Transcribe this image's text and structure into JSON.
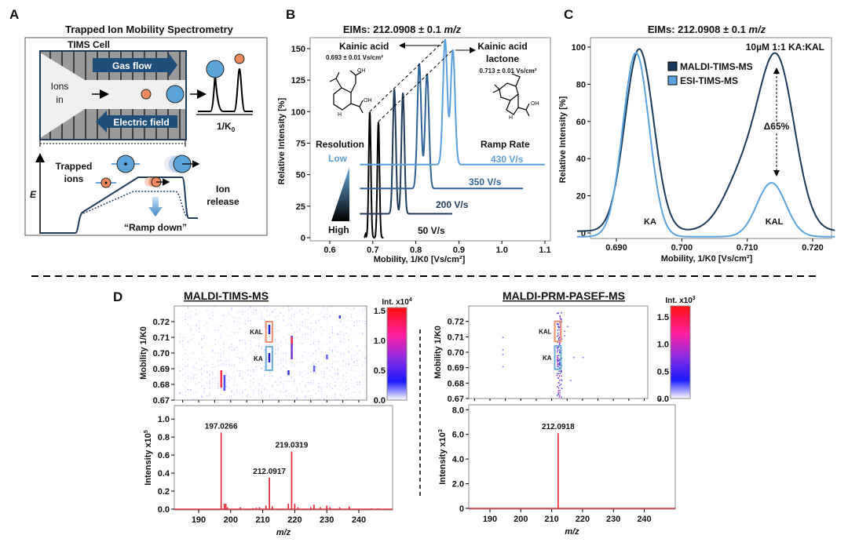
{
  "panel_labels": [
    "A",
    "B",
    "C",
    "D"
  ],
  "panel_a": {
    "title": "Trapped Ion Mobility Spectrometry",
    "cell_label": "TIMS Cell",
    "gas_flow": "Gas flow",
    "electric_field": "Electric field",
    "ions_in_1": "Ions",
    "ions_in_2": "in",
    "axis_k0": "1/K",
    "axis_k0_sub": "0",
    "trapped_1": "Trapped",
    "trapped_2": "ions",
    "energy": "E",
    "release_1": "Ion",
    "release_2": "release",
    "ramp_down": "“Ramp down”",
    "colors": {
      "blue_ion": "#5ba3d9",
      "orange_ion": "#f08a5d",
      "arrow": "#1f4e79",
      "electrode": "#9a9a9a"
    }
  },
  "chart_data": [
    {
      "id": "B",
      "type": "line",
      "title": "EIMs: 212.0908 ± 0.1 m/z",
      "title_main": "EIMs: 212.0908 ± 0.1 ",
      "title_unit": "m/z",
      "xlabel": "Mobility, 1/K0 [Vs/cm²]",
      "ylabel": "Relative Intensity [%]",
      "xlim": [
        0.55,
        1.1
      ],
      "ylim": [
        0,
        160
      ],
      "xticks": [
        "0.6",
        "0.7",
        "0.8",
        "0.9",
        "1.0",
        "1.1"
      ],
      "yticks": [
        "0",
        "25",
        "50",
        "75",
        "100",
        "125",
        "150"
      ],
      "series": [
        {
          "name": "50 V/s",
          "color": "#000000",
          "baseline": 0,
          "range": [
            0.68,
            0.725
          ],
          "peaks": [
            [
              0.693,
              100
            ],
            [
              0.713,
              92
            ]
          ],
          "width": 0.0025
        },
        {
          "name": "200 V/s",
          "color": "#1f3b5c",
          "baseline": 19,
          "range": [
            0.67,
            0.885
          ],
          "peaks": [
            [
              0.75,
              118
            ],
            [
              0.77,
              115
            ]
          ],
          "width": 0.0035
        },
        {
          "name": "350 V/s",
          "color": "#2e6396",
          "baseline": 39,
          "range": [
            0.67,
            1.05
          ],
          "peaks": [
            [
              0.808,
              138
            ],
            [
              0.826,
              130
            ]
          ],
          "width": 0.0045
        },
        {
          "name": "430 V/s",
          "color": "#5b9fdc",
          "baseline": 58,
          "range": [
            0.67,
            1.1
          ],
          "peaks": [
            [
              0.868,
              157
            ],
            [
              0.886,
              149
            ]
          ],
          "width": 0.005
        }
      ],
      "annotations": {
        "ka_name": "Kainic acid",
        "ka_value": "0.693 ± 0.01 Vs/cm²",
        "kal_name_1": "Kainic acid",
        "kal_name_2": "lactone",
        "kal_value": "0.713 ± 0.01 Vs/cm²",
        "resolution": "Resolution",
        "low": "Low",
        "high": "High",
        "ramp_rate": "Ramp Rate"
      }
    },
    {
      "id": "C",
      "type": "line",
      "title_main": "EIMs: 212.0908 ± 0.1 ",
      "title_unit": "m/z",
      "subtitle": "10µM 1:1 KA:KAL",
      "xlabel": "Mobility, 1/K0 [Vs/cm²]",
      "ylabel": "Relative Intensity [%]",
      "xlim": [
        0.684,
        0.7235
      ],
      "ylim": [
        -3,
        104
      ],
      "xticks": [
        "0.690",
        "0.700",
        "0.710",
        "0.720"
      ],
      "yticks": [
        "0",
        "20",
        "40",
        "60",
        "80",
        "100"
      ],
      "legend_position": "top-center",
      "series": [
        {
          "name": "MALDI-TIMS-MS",
          "color": "#1b3a5a",
          "peaks": [
            [
              0.6935,
              98,
              0.0022
            ],
            [
              0.7146,
              88,
              0.0027
            ],
            [
              0.7095,
              30,
              0.003
            ]
          ],
          "offset": 1
        },
        {
          "name": "ESI-TIMS-MS",
          "color": "#5ba3e0",
          "peaks": [
            [
              0.693,
              99,
              0.002
            ],
            [
              0.7137,
              29,
              0.0022
            ]
          ],
          "offset": -2
        }
      ],
      "annotations": {
        "ka": "KA",
        "kal": "KAL",
        "delta": "Δ65%"
      }
    },
    {
      "id": "D-left-heatmap",
      "type": "heatmap",
      "title": "MALDI-TIMS-MS",
      "ylabel": "Mobility 1/K0",
      "xlim": [
        183,
        248
      ],
      "ylim": [
        0.67,
        0.73
      ],
      "yticks": [
        "0.67",
        "0.68",
        "0.69",
        "0.70",
        "0.71",
        "0.72"
      ],
      "colorbar": {
        "label": "Int. x10",
        "label_exp": "4",
        "ticks": [
          "0.0",
          "0.5",
          "1.0",
          "1.5"
        ],
        "max": 1.55
      },
      "boxes": [
        {
          "name": "KAL",
          "color": "#f0906a",
          "mz": [
            211,
            213
          ],
          "k0": [
            0.707,
            0.72
          ]
        },
        {
          "name": "KA",
          "color": "#6aaed6",
          "mz": [
            211,
            213
          ],
          "k0": [
            0.689,
            0.704
          ]
        }
      ]
    },
    {
      "id": "D-left-spectrum",
      "type": "bar",
      "xlabel": "m/z",
      "ylabel": "Intensity x10",
      "ylabel_exp": "5",
      "xlim": [
        183,
        248
      ],
      "ylim": [
        0,
        1.15
      ],
      "xticks": [
        "190",
        "200",
        "210",
        "220",
        "230",
        "240"
      ],
      "yticks": [
        "0.0",
        "0.2",
        "0.4",
        "0.6",
        "0.8",
        "1.0"
      ],
      "color": "#e0202a",
      "peaks": [
        [
          197.0266,
          0.85
        ],
        [
          198,
          0.06
        ],
        [
          198.5,
          0.06
        ],
        [
          199,
          0.02
        ],
        [
          203,
          0.02
        ],
        [
          207,
          0.01
        ],
        [
          208,
          0.015
        ],
        [
          209,
          0.02
        ],
        [
          211,
          0.04
        ],
        [
          212.0917,
          0.35
        ],
        [
          213,
          0.03
        ],
        [
          218,
          0.06
        ],
        [
          219.0319,
          0.64
        ],
        [
          220,
          0.06
        ],
        [
          221,
          0.02
        ],
        [
          225,
          0.02
        ],
        [
          226,
          0.05
        ],
        [
          228,
          0.02
        ],
        [
          230,
          0.04
        ],
        [
          231,
          0.02
        ],
        [
          234,
          0.02
        ],
        [
          237,
          0.03
        ],
        [
          244,
          0.01
        ],
        [
          246,
          0.01
        ]
      ],
      "labels": [
        "197.0266",
        "212.0917",
        "219.0319"
      ]
    },
    {
      "id": "D-right-heatmap",
      "type": "heatmap",
      "title": "MALDI-PRM-PASEF-MS",
      "ylabel": "Mobility 1/K0",
      "xlim": [
        183,
        241
      ],
      "ylim": [
        0.67,
        0.73
      ],
      "yticks": [
        "0.67",
        "0.68",
        "0.69",
        "0.70",
        "0.71",
        "0.72"
      ],
      "colorbar": {
        "label": "Int. x10",
        "label_exp": "3",
        "ticks": [
          "0.0",
          "0.5",
          "1.0",
          "1.5"
        ],
        "max": 1.7
      },
      "boxes": [
        {
          "name": "KAL",
          "color": "#f0906a",
          "mz": [
            211,
            213
          ],
          "k0": [
            0.707,
            0.72
          ]
        },
        {
          "name": "KA",
          "color": "#6aaed6",
          "mz": [
            211,
            213
          ],
          "k0": [
            0.689,
            0.704
          ]
        }
      ]
    },
    {
      "id": "D-right-spectrum",
      "type": "bar",
      "xlabel": "m/z",
      "ylabel": "Intensity x10",
      "ylabel_exp": "3",
      "xlim": [
        183,
        248
      ],
      "ylim": [
        0,
        8.4
      ],
      "xticks": [
        "190",
        "200",
        "210",
        "220",
        "230",
        "240"
      ],
      "yticks": [
        "0",
        "2.0",
        "4.0",
        "6.0",
        "8.0"
      ],
      "color": "#e0202a",
      "peaks": [
        [
          212.0918,
          6.1
        ]
      ],
      "labels": [
        "212.0918"
      ]
    }
  ]
}
